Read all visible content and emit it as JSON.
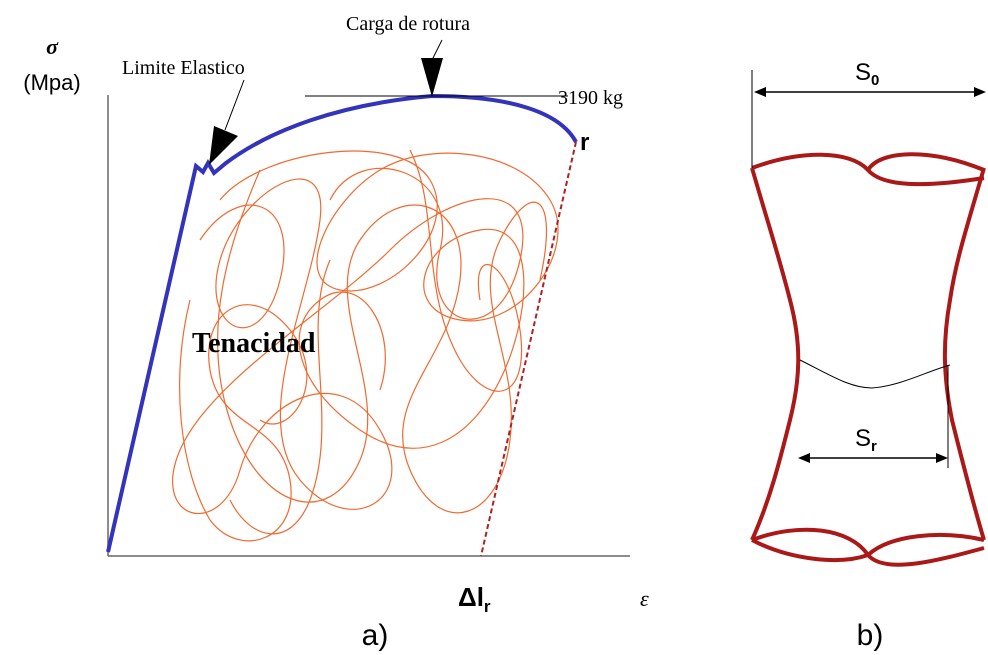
{
  "diagram_a": {
    "y_axis_symbol": "σ",
    "y_axis_unit": "(Mpa)",
    "x_axis_symbol": "ε",
    "elastic_limit_label": "Limite Elastico",
    "breaking_load_label": "Carga de rotura",
    "breaking_load_value": "3190 kg",
    "rupture_point_label": "r",
    "area_label": "Tenacidad",
    "elongation_label": {
      "main": "Δl",
      "sub": "r"
    },
    "caption": "a)"
  },
  "diagram_b": {
    "initial_section_label": {
      "main": "S",
      "sub": "0"
    },
    "rupture_section_label": {
      "main": "S",
      "sub": "r"
    },
    "caption": "b)"
  }
}
